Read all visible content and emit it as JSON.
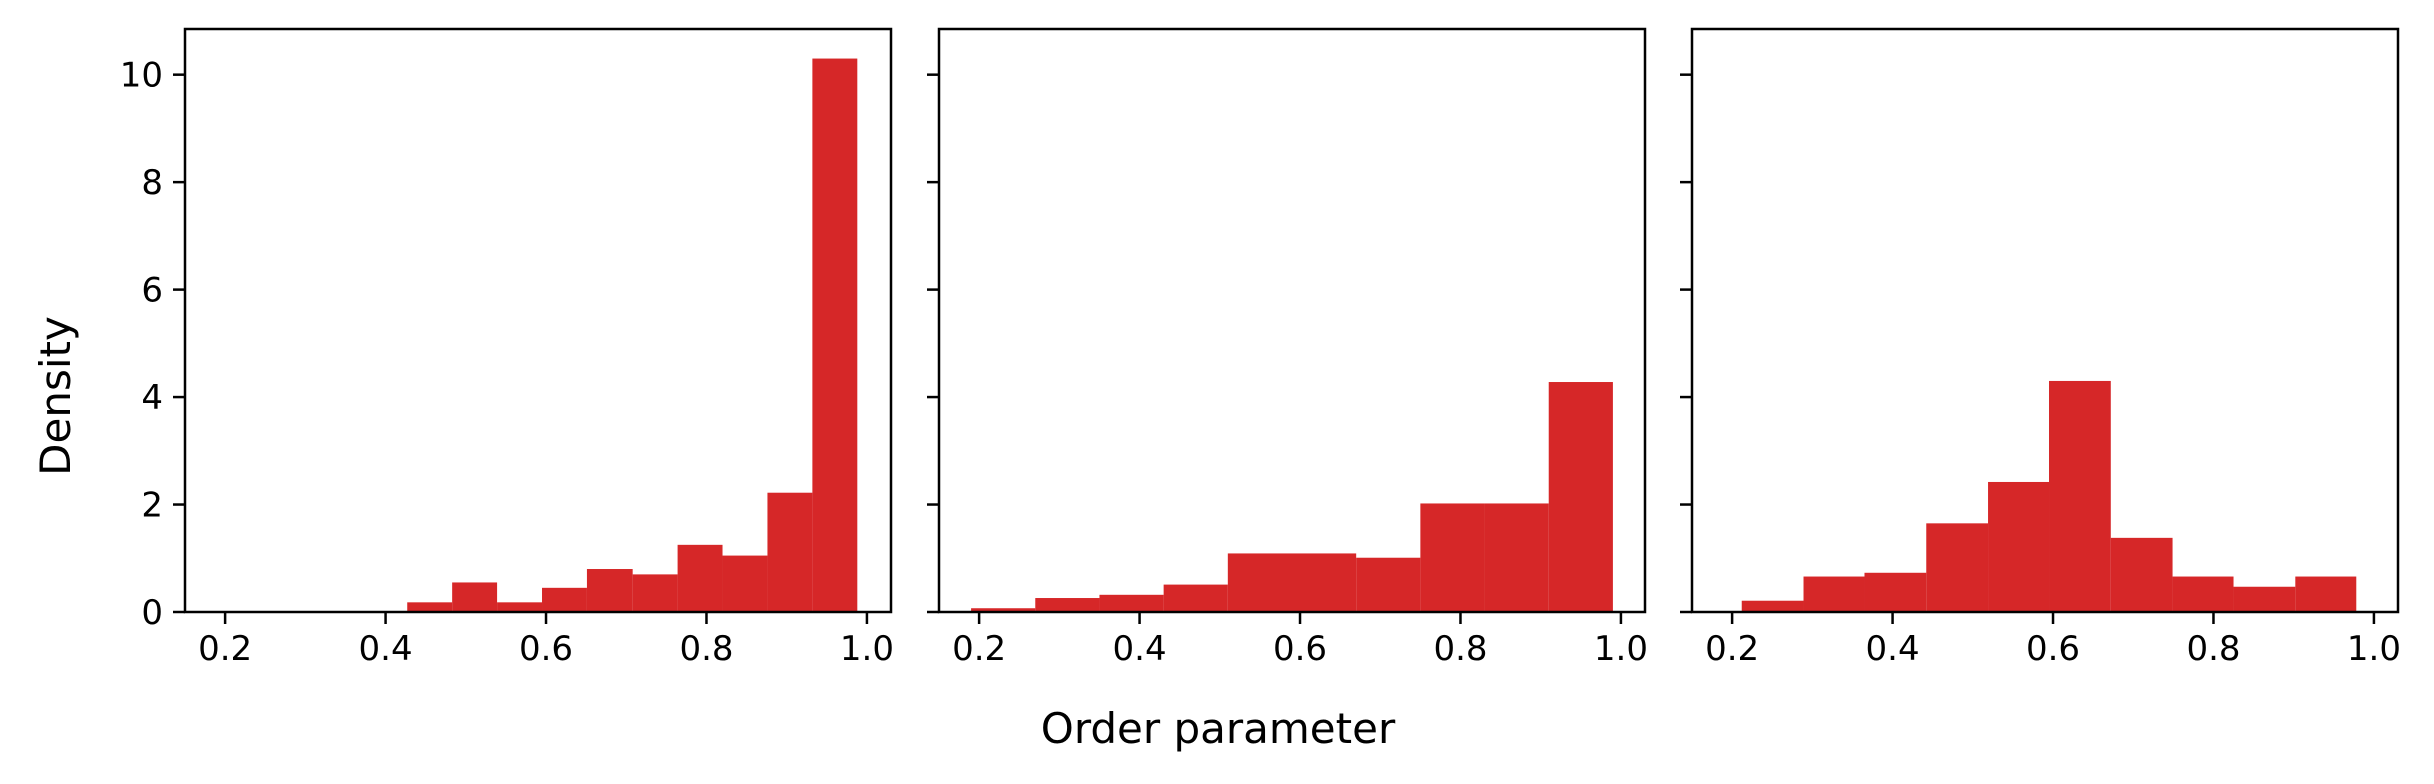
{
  "figure": {
    "ylabel": "Density",
    "xlabel": "Order parameter",
    "bar_color": "#d62728"
  },
  "chart_data": [
    {
      "type": "bar",
      "panel": "left",
      "xlim": [
        0.15,
        1.03
      ],
      "ylim": [
        0,
        10.85
      ],
      "xticks": [
        "0.2",
        "0.4",
        "0.6",
        "0.8",
        "1.0"
      ],
      "yticks": [
        "0",
        "2",
        "4",
        "6",
        "8",
        "10"
      ],
      "grid": false,
      "bins": [
        {
          "x0": 0.427,
          "x1": 0.483,
          "value": 0.18
        },
        {
          "x0": 0.483,
          "x1": 0.539,
          "value": 0.55
        },
        {
          "x0": 0.539,
          "x1": 0.595,
          "value": 0.18
        },
        {
          "x0": 0.595,
          "x1": 0.651,
          "value": 0.45
        },
        {
          "x0": 0.651,
          "x1": 0.708,
          "value": 0.8
        },
        {
          "x0": 0.708,
          "x1": 0.764,
          "value": 0.7
        },
        {
          "x0": 0.764,
          "x1": 0.82,
          "value": 1.25
        },
        {
          "x0": 0.82,
          "x1": 0.876,
          "value": 1.05
        },
        {
          "x0": 0.876,
          "x1": 0.932,
          "value": 2.22
        },
        {
          "x0": 0.932,
          "x1": 0.988,
          "value": 10.3
        }
      ]
    },
    {
      "type": "bar",
      "panel": "middle",
      "xlim": [
        0.15,
        1.03
      ],
      "ylim": [
        0,
        10.85
      ],
      "xticks": [
        "0.2",
        "0.4",
        "0.6",
        "0.8",
        "1.0"
      ],
      "yticks": [
        "0",
        "2",
        "4",
        "6",
        "8",
        "10"
      ],
      "grid": false,
      "bins": [
        {
          "x0": 0.19,
          "x1": 0.27,
          "value": 0.07
        },
        {
          "x0": 0.27,
          "x1": 0.35,
          "value": 0.26
        },
        {
          "x0": 0.35,
          "x1": 0.43,
          "value": 0.32
        },
        {
          "x0": 0.43,
          "x1": 0.51,
          "value": 0.51
        },
        {
          "x0": 0.51,
          "x1": 0.59,
          "value": 1.09
        },
        {
          "x0": 0.59,
          "x1": 0.67,
          "value": 1.09
        },
        {
          "x0": 0.67,
          "x1": 0.75,
          "value": 1.01
        },
        {
          "x0": 0.75,
          "x1": 0.83,
          "value": 2.02
        },
        {
          "x0": 0.83,
          "x1": 0.91,
          "value": 2.02
        },
        {
          "x0": 0.91,
          "x1": 0.99,
          "value": 4.28
        }
      ]
    },
    {
      "type": "bar",
      "panel": "right",
      "xlim": [
        0.15,
        1.03
      ],
      "ylim": [
        0,
        10.85
      ],
      "xticks": [
        "0.2",
        "0.4",
        "0.6",
        "0.8",
        "1.0"
      ],
      "yticks": [
        "0",
        "2",
        "4",
        "6",
        "8",
        "10"
      ],
      "grid": false,
      "bins": [
        {
          "x0": 0.212,
          "x1": 0.289,
          "value": 0.21
        },
        {
          "x0": 0.289,
          "x1": 0.365,
          "value": 0.66
        },
        {
          "x0": 0.365,
          "x1": 0.442,
          "value": 0.73
        },
        {
          "x0": 0.442,
          "x1": 0.519,
          "value": 1.65
        },
        {
          "x0": 0.519,
          "x1": 0.595,
          "value": 2.42
        },
        {
          "x0": 0.595,
          "x1": 0.672,
          "value": 4.3
        },
        {
          "x0": 0.672,
          "x1": 0.749,
          "value": 1.38
        },
        {
          "x0": 0.749,
          "x1": 0.825,
          "value": 0.66
        },
        {
          "x0": 0.825,
          "x1": 0.902,
          "value": 0.47
        },
        {
          "x0": 0.902,
          "x1": 0.978,
          "value": 0.66
        }
      ]
    }
  ]
}
